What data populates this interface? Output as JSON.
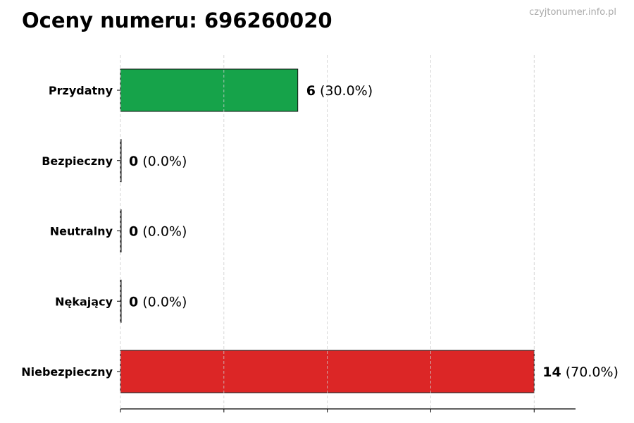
{
  "title": "Oceny numeru: 696260020",
  "watermark": "czyjtonumer.info.pl",
  "chart_data": {
    "type": "bar",
    "orientation": "horizontal",
    "title": "Oceny numeru: 696260020",
    "categories": [
      "Przydatny",
      "Bezpieczny",
      "Neutralny",
      "Nękający",
      "Niebezpieczny"
    ],
    "values": [
      6,
      0,
      0,
      0,
      14
    ],
    "labels": [
      "(30.0%)",
      "(0.0%)",
      "(0.0%)",
      "(0.0%)",
      "(70.0%)"
    ],
    "colors": [
      "#16a34a",
      "#16a34a",
      "#9ca3af",
      "#dc2626",
      "#dc2626"
    ],
    "xlim": [
      0,
      15.4
    ],
    "xticks": [
      0,
      3.5,
      7,
      10.5,
      14
    ],
    "xtick_labels_shown": false,
    "grid": "x, dashed",
    "xlabel": "",
    "ylabel": ""
  }
}
